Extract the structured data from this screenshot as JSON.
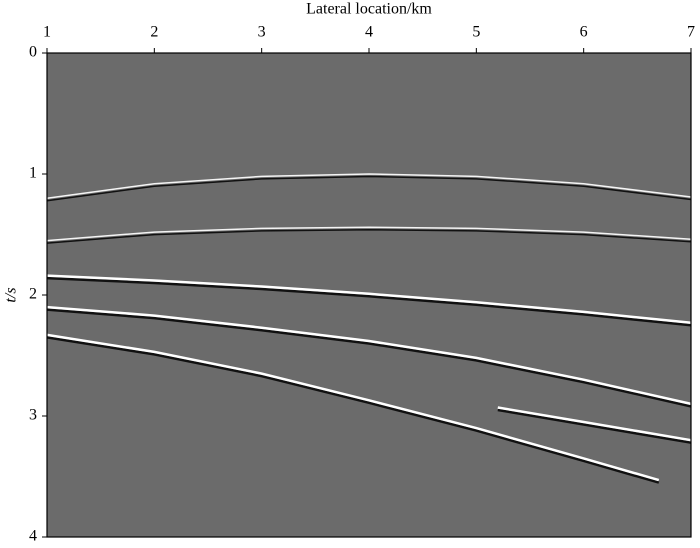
{
  "chart_data": {
    "type": "seismic",
    "xlabel": "Lateral location/km",
    "ylabel": "t/s",
    "xlim": [
      1,
      7
    ],
    "ylim": [
      4,
      0
    ],
    "xticks": [
      1,
      2,
      3,
      4,
      5,
      6,
      7
    ],
    "yticks": [
      0,
      1,
      2,
      3,
      4
    ],
    "background": "#6b6b6b",
    "series": [
      {
        "color": "#f4f4f4",
        "x": [
          1,
          2,
          3,
          4,
          5,
          6,
          7
        ],
        "values": [
          1.2,
          1.08,
          1.02,
          1.0,
          1.02,
          1.08,
          1.19
        ]
      },
      {
        "color": "#f4f4f4",
        "x": [
          1,
          2,
          3,
          4,
          5,
          6,
          7
        ],
        "values": [
          1.55,
          1.48,
          1.45,
          1.44,
          1.45,
          1.48,
          1.54
        ]
      },
      {
        "color": "#ffffff",
        "x": [
          1,
          2,
          3,
          4,
          5,
          6,
          7
        ],
        "values": [
          1.84,
          1.88,
          1.93,
          1.99,
          2.06,
          2.14,
          2.23
        ]
      },
      {
        "color": "#ffffff",
        "x": [
          1,
          2,
          3,
          4,
          5,
          6,
          7
        ],
        "values": [
          2.1,
          2.17,
          2.27,
          2.38,
          2.52,
          2.7,
          2.9
        ]
      },
      {
        "color": "#ffffff",
        "x": [
          1,
          2,
          3,
          4,
          5,
          6,
          6.7
        ],
        "values": [
          2.33,
          2.47,
          2.65,
          2.87,
          3.1,
          3.35,
          3.53
        ]
      },
      {
        "color": "#ffffff",
        "x": [
          5.2,
          6,
          7
        ],
        "values": [
          2.93,
          3.05,
          3.2
        ]
      }
    ]
  }
}
